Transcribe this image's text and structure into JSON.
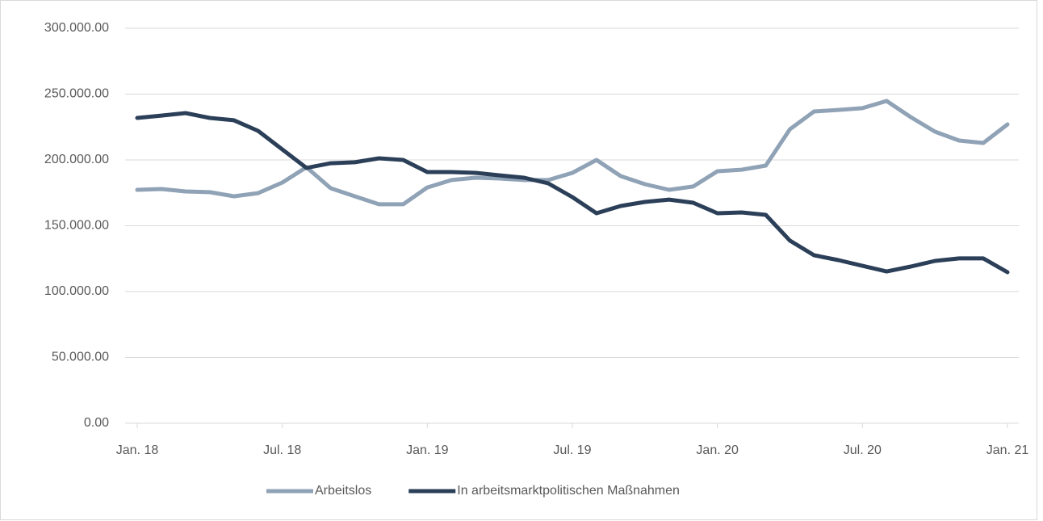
{
  "chart_data": {
    "type": "line",
    "categories": [
      "Jan. 18",
      null,
      null,
      null,
      null,
      null,
      "Jul. 18",
      null,
      null,
      null,
      null,
      null,
      "Jan. 19",
      null,
      null,
      null,
      null,
      null,
      "Jul. 19",
      null,
      null,
      null,
      null,
      null,
      "Jan. 20",
      null,
      null,
      null,
      null,
      null,
      "Jul. 20",
      null,
      null,
      null,
      null,
      null,
      "Jan. 21"
    ],
    "series": [
      {
        "name": "Arbeitslos",
        "color": "#8fa2b6",
        "values": [
          177300,
          177900,
          176100,
          175500,
          172400,
          174800,
          182800,
          194500,
          178500,
          172400,
          166300,
          166300,
          179100,
          184700,
          186500,
          185900,
          184700,
          184700,
          190200,
          200000,
          187700,
          181600,
          177300,
          179800,
          191400,
          192600,
          195700,
          223300,
          236800,
          238000,
          239300,
          244800,
          232500,
          221500,
          214700,
          212900,
          227000
        ]
      },
      {
        "name": "In arbeitsmarktpolitischen Maßnahmen",
        "color": "#2b3f58",
        "values": [
          231900,
          233700,
          235600,
          231900,
          230100,
          222100,
          208000,
          193900,
          197500,
          198200,
          201200,
          200000,
          190800,
          190800,
          190200,
          188300,
          186500,
          182200,
          171800,
          159500,
          165000,
          168100,
          169900,
          167500,
          159500,
          160100,
          158300,
          138700,
          127600,
          123900,
          119600,
          115300,
          119000,
          123300,
          125200,
          125200,
          114700
        ]
      }
    ],
    "ylim": [
      0,
      300000
    ],
    "yticks": [
      {
        "value": 0,
        "label": "0.00"
      },
      {
        "value": 50000,
        "label": "50.000.00"
      },
      {
        "value": 100000,
        "label": "100.000.00"
      },
      {
        "value": 150000,
        "label": "150.000.00"
      },
      {
        "value": 200000,
        "label": "200.000.00"
      },
      {
        "value": 250000,
        "label": "250.000.00"
      },
      {
        "value": 300000,
        "label": "300.000.00"
      }
    ],
    "grid": true,
    "legend": "bottom"
  }
}
